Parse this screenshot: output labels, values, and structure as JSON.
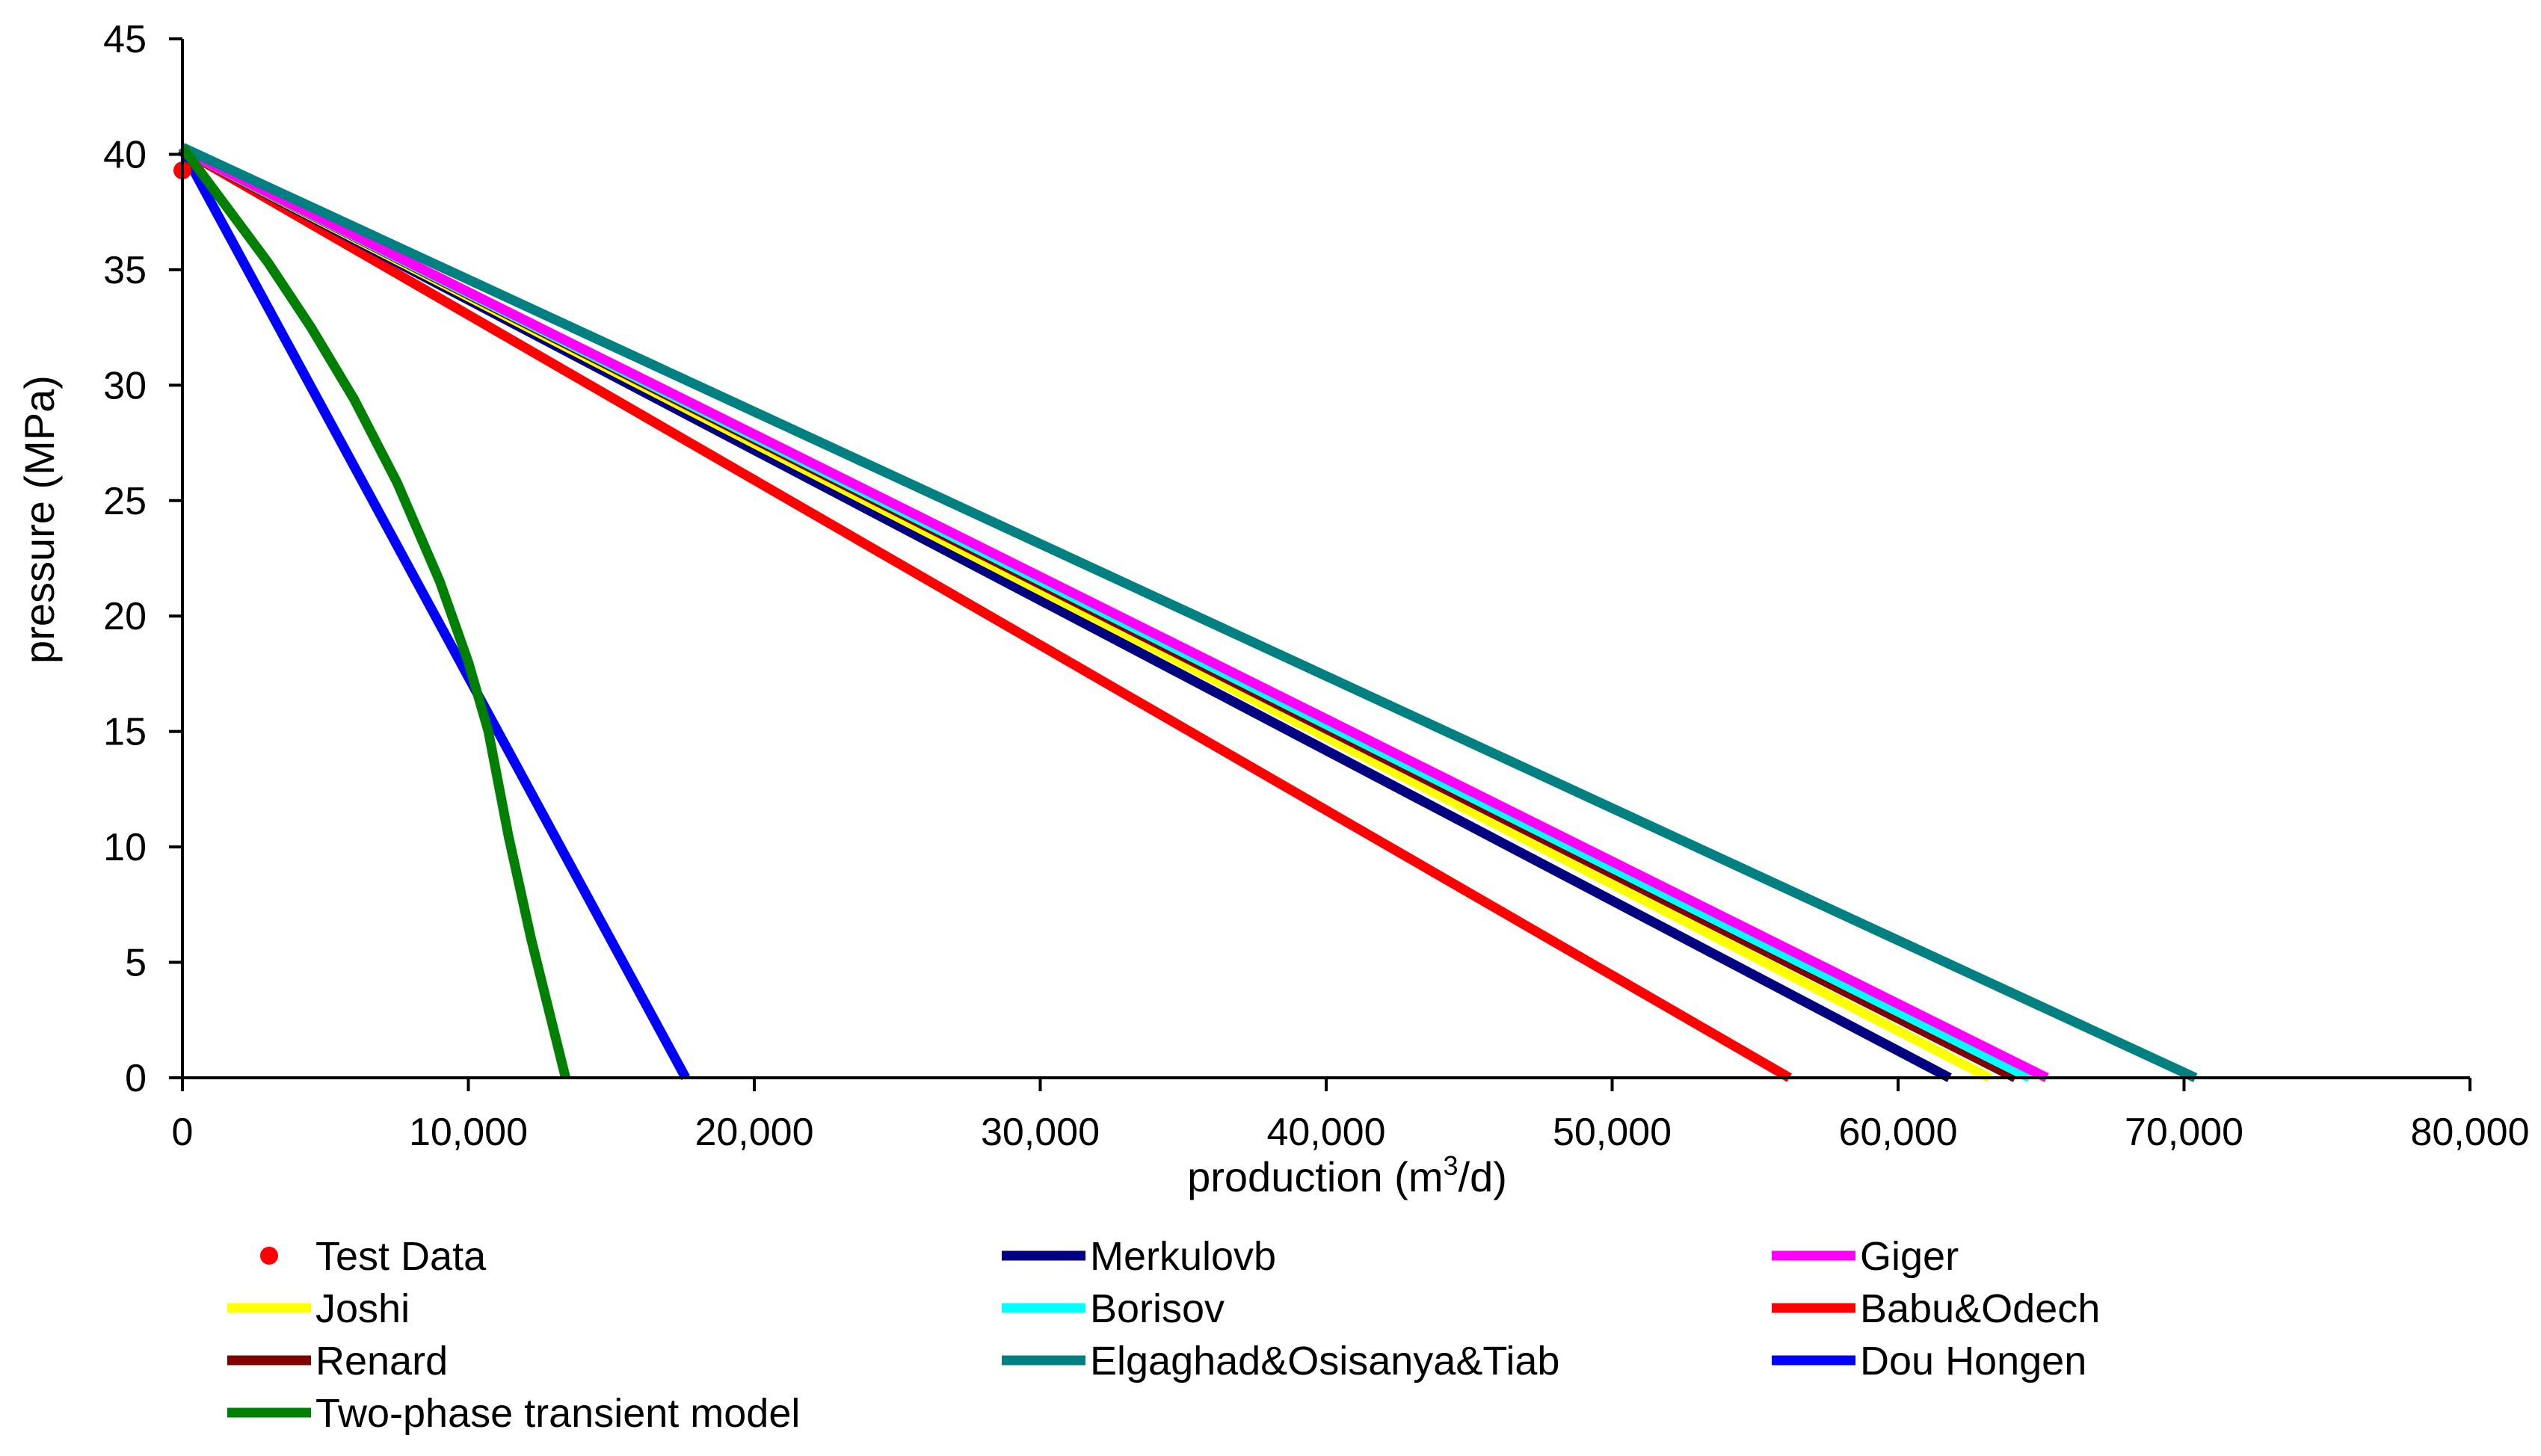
{
  "chart_data": {
    "type": "line",
    "title": "",
    "xlabel_parts": [
      "production (m",
      "3",
      "/d)"
    ],
    "ylabel": "pressure (MPa)",
    "xlim": [
      0,
      80000
    ],
    "ylim": [
      0,
      45
    ],
    "x_ticks": [
      0,
      10000,
      20000,
      30000,
      40000,
      50000,
      60000,
      70000,
      80000
    ],
    "x_tick_labels": [
      "0",
      "10,000",
      "20,000",
      "30,000",
      "40,000",
      "50,000",
      "60,000",
      "70,000",
      "80,000"
    ],
    "y_ticks": [
      0,
      5,
      10,
      15,
      20,
      25,
      30,
      35,
      40,
      45
    ],
    "y_tick_labels": [
      "0",
      "5",
      "10",
      "15",
      "20",
      "25",
      "30",
      "35",
      "40",
      "45"
    ],
    "grid": false,
    "legend_position": "bottom",
    "series": [
      {
        "name": "Test Data",
        "kind": "scatter",
        "color": "#FF0000",
        "x": [
          0
        ],
        "y": [
          39.3
        ]
      },
      {
        "name": "Merkulovb",
        "kind": "line",
        "color": "#000080",
        "x": [
          0,
          61800
        ],
        "y": [
          40.2,
          0
        ]
      },
      {
        "name": "Giger",
        "kind": "line",
        "color": "#FF00FF",
        "x": [
          0,
          65200
        ],
        "y": [
          40.2,
          0
        ]
      },
      {
        "name": "Joshi",
        "kind": "line",
        "color": "#FFFF00",
        "x": [
          0,
          63200
        ],
        "y": [
          40.2,
          0
        ]
      },
      {
        "name": "Borisov",
        "kind": "line",
        "color": "#00FFFF",
        "x": [
          0,
          64600
        ],
        "y": [
          40.2,
          0
        ]
      },
      {
        "name": "Babu&Odech",
        "kind": "line",
        "color": "#FF0000",
        "x": [
          0,
          56200
        ],
        "y": [
          40.2,
          0
        ]
      },
      {
        "name": "Renard",
        "kind": "line",
        "color": "#800000",
        "x": [
          0,
          64100
        ],
        "y": [
          40.2,
          0
        ]
      },
      {
        "name": "Elgaghad&Osisanya&Tiab",
        "kind": "line",
        "color": "#008080",
        "x": [
          0,
          70400
        ],
        "y": [
          40.3,
          0
        ]
      },
      {
        "name": "Dou Hongen",
        "kind": "line",
        "color": "#0000FF",
        "x": [
          0,
          17600
        ],
        "y": [
          40.2,
          0
        ]
      },
      {
        "name": "Two-phase transient model",
        "kind": "line",
        "color": "#008000",
        "x": [
          0,
          1500,
          3000,
          4500,
          6000,
          7500,
          9000,
          10000,
          10700,
          11400,
          12200,
          12900,
          13400
        ],
        "y": [
          40.3,
          37.8,
          35.3,
          32.5,
          29.4,
          25.8,
          21.5,
          18.0,
          15.0,
          10.5,
          6.0,
          2.5,
          0
        ]
      }
    ]
  }
}
